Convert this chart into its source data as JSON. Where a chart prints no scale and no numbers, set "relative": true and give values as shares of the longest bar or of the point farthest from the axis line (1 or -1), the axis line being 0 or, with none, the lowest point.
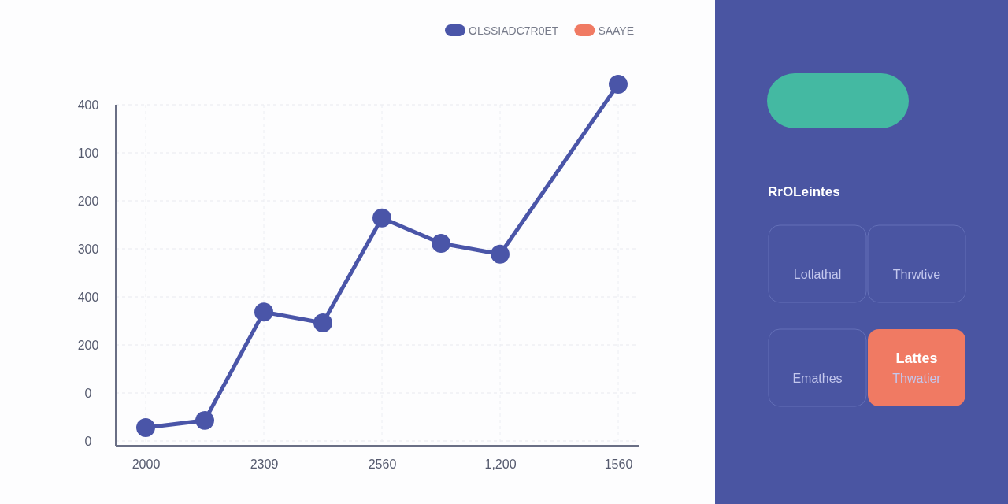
{
  "chart_data": {
    "type": "line",
    "categories": [
      "2000",
      null,
      "2309",
      null,
      "2560",
      null,
      "1,200",
      null,
      "1560"
    ],
    "relative": true,
    "series": [
      {
        "name": "OLSSIADC7R0ET",
        "color": "#4a55a8",
        "values": [
          0.05,
          0.07,
          0.37,
          0.34,
          0.63,
          0.56,
          0.53,
          null,
          1
        ]
      },
      {
        "name": "SAAYE",
        "color": "#f07a63",
        "values": [
          null,
          null,
          null,
          null,
          null,
          null,
          null,
          null,
          null
        ]
      }
    ],
    "marker": "circle",
    "line_style": "solid",
    "grid": true,
    "legend": "top right",
    "annotations": [
      "400",
      "100",
      "200",
      "300",
      "400",
      "200",
      "0",
      "0",
      "RrOLeintes",
      "Lotlathal",
      "Thrwtive",
      "Emathes",
      "Lattes",
      "Thwatier"
    ]
  }
}
